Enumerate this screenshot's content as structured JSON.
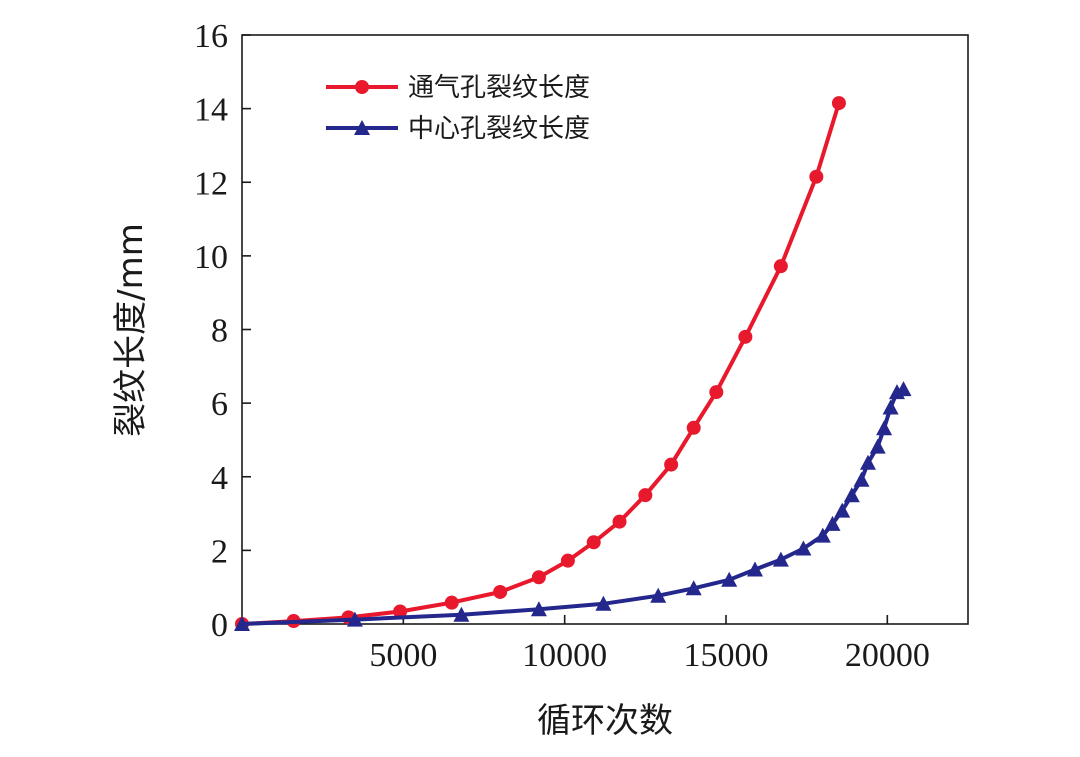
{
  "chart_data": {
    "type": "line",
    "title": "",
    "xlabel": "循环次数",
    "ylabel": "裂纹长度/mm",
    "xlim": [
      0,
      22500
    ],
    "ylim": [
      0,
      16
    ],
    "xticks": [
      5000,
      10000,
      15000,
      20000
    ],
    "yticks": [
      0,
      2,
      4,
      6,
      8,
      10,
      12,
      14,
      16
    ],
    "legend_position": "top-left",
    "grid": false,
    "series": [
      {
        "name": "通气孔裂纹长度",
        "marker": "circle",
        "color": "#e8192c",
        "x": [
          0,
          1600,
          3300,
          4900,
          6500,
          8000,
          9200,
          10100,
          10900,
          11700,
          12500,
          13300,
          14000,
          14700,
          15600,
          16700,
          17800,
          18500
        ],
        "y": [
          0.0,
          0.08,
          0.18,
          0.34,
          0.58,
          0.87,
          1.27,
          1.72,
          2.22,
          2.78,
          3.5,
          4.33,
          5.33,
          6.3,
          7.8,
          9.72,
          12.15,
          14.15
        ]
      },
      {
        "name": "中心孔裂纹长度",
        "marker": "triangle",
        "color": "#24278c",
        "x": [
          0,
          3500,
          6800,
          9200,
          11200,
          12900,
          14000,
          15100,
          15900,
          16700,
          17400,
          18000,
          18300,
          18600,
          18900,
          19200,
          19400,
          19700,
          19900,
          20100,
          20300,
          20500
        ],
        "y": [
          0.0,
          0.12,
          0.25,
          0.4,
          0.55,
          0.77,
          0.97,
          1.2,
          1.48,
          1.75,
          2.05,
          2.4,
          2.72,
          3.08,
          3.5,
          3.92,
          4.38,
          4.82,
          5.32,
          5.88,
          6.3,
          6.38
        ]
      }
    ]
  }
}
